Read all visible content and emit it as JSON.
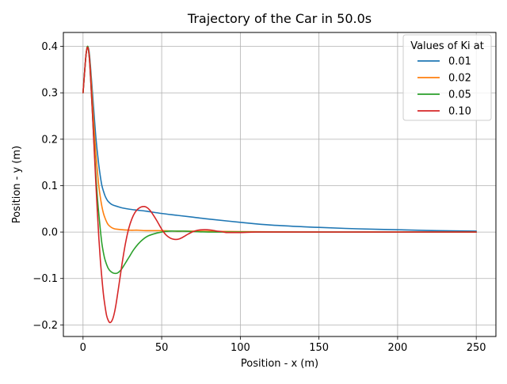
{
  "chart_data": {
    "type": "line",
    "title": "Trajectory of the Car in 50.0s",
    "xlabel": "Position - x (m)",
    "ylabel": "Position - y (m)",
    "xlim": [
      -12.5,
      262.5
    ],
    "ylim": [
      -0.225,
      0.43
    ],
    "xticks": [
      0,
      50,
      100,
      150,
      200,
      250
    ],
    "yticks": [
      -0.2,
      -0.1,
      0.0,
      0.1,
      0.2,
      0.3,
      0.4
    ],
    "xtick_labels": [
      "0",
      "50",
      "100",
      "150",
      "200",
      "250"
    ],
    "ytick_labels": [
      "−0.2",
      "−0.1",
      "0.0",
      "0.1",
      "0.2",
      "0.3",
      "0.4"
    ],
    "grid": true,
    "legend": {
      "title": "Values of Ki at",
      "placement": "top-right"
    },
    "series": [
      {
        "name": "0.01",
        "color": "#1f77b4",
        "x": [
          0,
          1,
          2,
          3,
          4,
          5,
          6,
          7,
          8,
          9,
          10,
          11,
          12,
          13,
          14,
          15,
          16,
          18,
          20,
          22,
          25,
          30,
          35,
          40,
          50,
          60,
          70,
          80,
          100,
          120,
          150,
          175,
          200,
          225,
          250
        ],
        "y": [
          0.3,
          0.345,
          0.385,
          0.4,
          0.385,
          0.345,
          0.3,
          0.255,
          0.21,
          0.175,
          0.145,
          0.12,
          0.1,
          0.088,
          0.078,
          0.071,
          0.066,
          0.06,
          0.057,
          0.055,
          0.052,
          0.049,
          0.047,
          0.045,
          0.04,
          0.036,
          0.032,
          0.028,
          0.021,
          0.015,
          0.01,
          0.007,
          0.005,
          0.003,
          0.002
        ]
      },
      {
        "name": "0.02",
        "color": "#ff7f0e",
        "x": [
          0,
          1,
          2,
          3,
          4,
          5,
          6,
          7,
          8,
          9,
          10,
          11,
          12,
          13,
          14,
          15,
          16,
          18,
          20,
          22,
          25,
          30,
          35,
          40,
          50,
          60,
          70,
          100,
          150,
          200,
          250
        ],
        "y": [
          0.3,
          0.345,
          0.385,
          0.4,
          0.38,
          0.335,
          0.28,
          0.225,
          0.175,
          0.135,
          0.1,
          0.075,
          0.055,
          0.04,
          0.03,
          0.022,
          0.016,
          0.01,
          0.007,
          0.006,
          0.005,
          0.004,
          0.004,
          0.003,
          0.003,
          0.002,
          0.002,
          0.001,
          0.0,
          0.0,
          0.0
        ]
      },
      {
        "name": "0.05",
        "color": "#2ca02c",
        "x": [
          0,
          1,
          2,
          3,
          4,
          5,
          6,
          7,
          8,
          9,
          10,
          11,
          12,
          13,
          14,
          16,
          18,
          20,
          22,
          24,
          26,
          28,
          30,
          32,
          35,
          38,
          41,
          45,
          50,
          55,
          60,
          65,
          70,
          80,
          90,
          100,
          150,
          200,
          250
        ],
        "y": [
          0.3,
          0.345,
          0.385,
          0.4,
          0.375,
          0.32,
          0.255,
          0.19,
          0.13,
          0.08,
          0.04,
          0.005,
          -0.025,
          -0.045,
          -0.06,
          -0.078,
          -0.086,
          -0.089,
          -0.088,
          -0.082,
          -0.072,
          -0.061,
          -0.05,
          -0.039,
          -0.026,
          -0.016,
          -0.009,
          -0.004,
          0.0,
          0.002,
          0.002,
          0.002,
          0.001,
          0.0,
          0.0,
          0.0,
          0.0,
          0.0,
          0.0
        ]
      },
      {
        "name": "0.10",
        "color": "#d62728",
        "x": [
          0,
          1,
          2,
          3,
          4,
          5,
          6,
          7,
          8,
          9,
          10,
          11,
          12,
          13,
          14,
          15,
          16,
          17,
          18,
          19,
          20,
          21,
          22,
          23,
          24,
          25,
          27,
          29,
          31,
          33,
          35,
          37,
          39,
          41,
          43,
          45,
          47,
          49,
          51,
          53,
          55,
          57,
          59,
          61,
          63,
          65,
          67,
          70,
          73,
          76,
          79,
          82,
          85,
          88,
          91,
          95,
          100,
          110,
          120,
          150,
          200,
          250
        ],
        "y": [
          0.3,
          0.345,
          0.385,
          0.398,
          0.375,
          0.32,
          0.255,
          0.185,
          0.115,
          0.05,
          -0.01,
          -0.06,
          -0.1,
          -0.135,
          -0.16,
          -0.18,
          -0.19,
          -0.195,
          -0.193,
          -0.186,
          -0.173,
          -0.155,
          -0.133,
          -0.11,
          -0.087,
          -0.064,
          -0.024,
          0.007,
          0.028,
          0.042,
          0.05,
          0.054,
          0.055,
          0.052,
          0.045,
          0.035,
          0.024,
          0.012,
          0.001,
          -0.007,
          -0.012,
          -0.015,
          -0.016,
          -0.015,
          -0.012,
          -0.008,
          -0.004,
          0.001,
          0.004,
          0.005,
          0.005,
          0.004,
          0.002,
          0.001,
          -0.001,
          -0.001,
          -0.001,
          0.0,
          0.0,
          0.0,
          0.0,
          0.0
        ]
      }
    ]
  }
}
